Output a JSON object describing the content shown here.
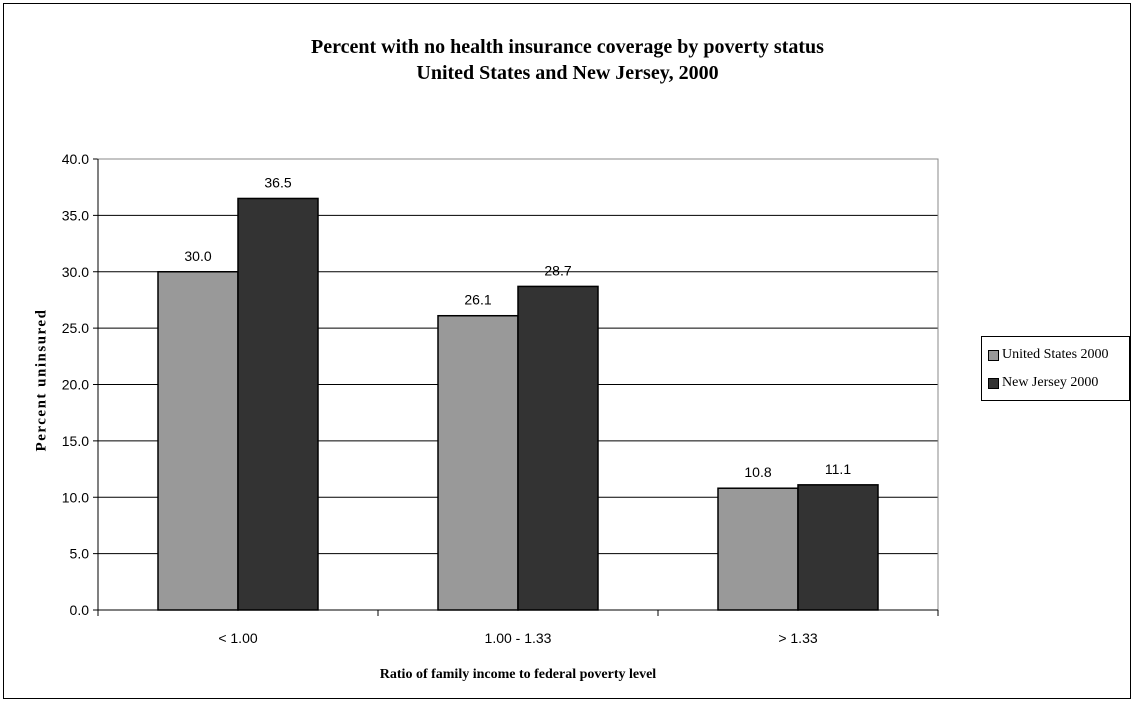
{
  "chart_data": {
    "type": "bar",
    "title": "Percent with no health insurance coverage by poverty status",
    "subtitle": "United States and New Jersey, 2000",
    "xlabel": "Ratio of family income to federal poverty level",
    "ylabel": "Percent uninsured",
    "categories": [
      "< 1.00",
      "1.00 - 1.33",
      "> 1.33"
    ],
    "series": [
      {
        "name": "United States 2000",
        "values": [
          30.0,
          26.1,
          10.8
        ],
        "color": "#999999"
      },
      {
        "name": "New Jersey 2000",
        "values": [
          36.5,
          28.7,
          11.1
        ],
        "color": "#333333"
      }
    ],
    "ylim": [
      0,
      40
    ],
    "yticks": [
      "0.0",
      "5.0",
      "10.0",
      "15.0",
      "20.0",
      "25.0",
      "30.0",
      "35.0",
      "40.0"
    ],
    "grid": true,
    "legend_position": "right"
  }
}
